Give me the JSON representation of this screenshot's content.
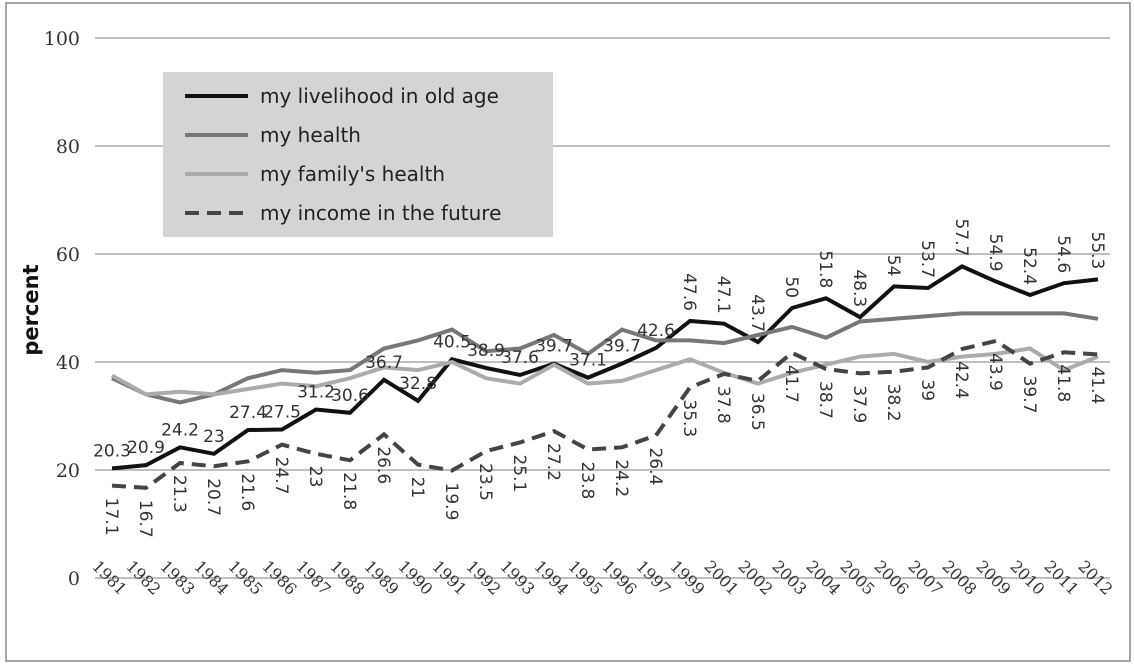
{
  "chart_data": {
    "type": "line",
    "y_label": "percent",
    "categories": [
      "1981",
      "1982",
      "1983",
      "1984",
      "1985",
      "1986",
      "1987",
      "1988",
      "1989",
      "1990",
      "1991",
      "1992",
      "1993",
      "1994",
      "1995",
      "1996",
      "1997",
      "1999",
      "2001",
      "2002",
      "2003",
      "2004",
      "2005",
      "2006",
      "2007",
      "2008",
      "2009",
      "2010",
      "2011",
      "2012"
    ],
    "series": [
      {
        "name": "my livelihood in old age",
        "color": "#111111",
        "linestyle": "solid",
        "show_labels": true,
        "values": [
          20.3,
          20.9,
          24.2,
          23,
          27.4,
          27.5,
          31.2,
          30.6,
          36.7,
          32.8,
          40.5,
          38.9,
          37.6,
          39.7,
          37.1,
          39.7,
          42.6,
          47.6,
          47.1,
          43.7,
          50,
          51.8,
          48.3,
          54,
          53.7,
          57.7,
          54.9,
          52.4,
          54.6,
          55.3
        ]
      },
      {
        "name": "my health",
        "color": "#777777",
        "linestyle": "solid",
        "show_labels": false,
        "values": [
          37,
          34,
          32.5,
          34,
          37,
          38.5,
          38,
          38.5,
          42.5,
          44,
          46,
          42,
          42.5,
          45,
          41.5,
          46,
          44,
          44,
          43.5,
          45,
          46.5,
          44.5,
          47.5,
          48,
          48.5,
          49,
          49,
          49,
          49,
          48
        ]
      },
      {
        "name": "my family's health",
        "color": "#ababab",
        "linestyle": "solid",
        "show_labels": false,
        "values": [
          37.5,
          34,
          34.5,
          34,
          35,
          36,
          35.5,
          37,
          39,
          38.5,
          40,
          37,
          36,
          39.5,
          36,
          36.5,
          38.5,
          40.5,
          38,
          36,
          38,
          39.5,
          41,
          41.5,
          40,
          41,
          41.5,
          42.5,
          38.5,
          41
        ]
      },
      {
        "name": "my income in the future",
        "color": "#444444",
        "linestyle": "dashed",
        "show_labels": true,
        "values": [
          17.1,
          16.7,
          21.3,
          20.7,
          21.6,
          24.7,
          23,
          21.8,
          26.6,
          21,
          19.9,
          23.5,
          25.1,
          27.2,
          23.8,
          24.2,
          26.4,
          35.3,
          37.8,
          36.5,
          41.7,
          38.7,
          37.9,
          38.2,
          39,
          42.4,
          43.9,
          39.7,
          41.8,
          41.4
        ]
      }
    ],
    "ylim": [
      0,
      100
    ],
    "yticks": [
      0,
      20,
      40,
      60,
      80,
      100
    ],
    "grid": true,
    "legend": "upper left"
  }
}
